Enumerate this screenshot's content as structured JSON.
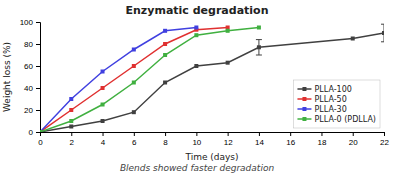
{
  "chart_data": {
    "type": "line",
    "title": "Enzymatic degradation",
    "x_label": "Time (days)",
    "y_label": "Weight loss (%)",
    "annotations": [
      "Blends showed faster degradation"
    ],
    "xlim": [
      0,
      22
    ],
    "ylim": [
      0,
      100
    ],
    "xticks": [
      0,
      2,
      4,
      6,
      8,
      10,
      12,
      14,
      16,
      18,
      20,
      22
    ],
    "yticks": [
      0,
      20,
      40,
      60,
      80,
      100
    ],
    "grid": false,
    "legend": "lower right",
    "marker": "square",
    "series": [
      {
        "name": "PLLA-100",
        "color": "#404040",
        "x": [
          0,
          2,
          4,
          6,
          8,
          10,
          12,
          14,
          20,
          22
        ],
        "values": [
          0,
          5,
          10,
          18,
          45,
          60,
          63,
          77,
          85,
          90
        ],
        "errors": [
          0,
          0,
          0,
          0,
          0,
          0,
          0,
          7,
          0,
          8
        ]
      },
      {
        "name": "PLLA-50",
        "color": "#e03030",
        "x": [
          0,
          2,
          4,
          6,
          8,
          10,
          12
        ],
        "values": [
          0,
          20,
          40,
          60,
          80,
          93,
          95
        ]
      },
      {
        "name": "PLLA-30",
        "color": "#4040e0",
        "x": [
          0,
          2,
          4,
          6,
          8,
          10
        ],
        "values": [
          0,
          30,
          55,
          75,
          92,
          95
        ]
      },
      {
        "name": "PLLA-0 (PDLLA)",
        "color": "#40b040",
        "x": [
          0,
          2,
          4,
          6,
          8,
          10,
          12,
          14
        ],
        "values": [
          0,
          10,
          25,
          45,
          70,
          88,
          92,
          95
        ]
      }
    ]
  }
}
